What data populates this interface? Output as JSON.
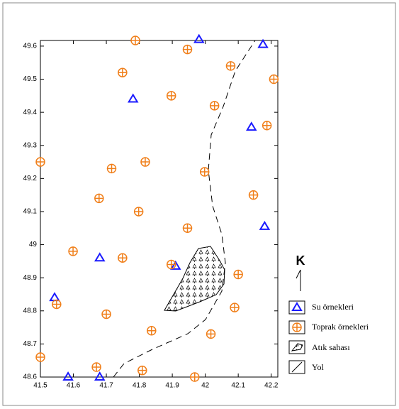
{
  "chart_data": {
    "type": "scatter",
    "xlim": [
      41.5,
      42.22
    ],
    "ylim": [
      48.6,
      49.617
    ],
    "xticks": [
      41.5,
      41.6,
      41.7,
      41.8,
      41.9,
      42,
      42.1,
      42.2
    ],
    "yticks": [
      48.6,
      48.7,
      48.8,
      48.9,
      49,
      49.1,
      49.2,
      49.3,
      49.4,
      49.5,
      49.6
    ],
    "series": [
      {
        "name": "Su örnekleri",
        "color": "#1a1aff",
        "marker": "triangle",
        "x": [
          41.981,
          42.175,
          41.781,
          42.14,
          42.18,
          41.68,
          41.91,
          41.543,
          41.584,
          41.68
        ],
        "values": [
          49.62,
          49.605,
          49.44,
          49.355,
          49.055,
          48.96,
          48.935,
          48.84,
          48.6,
          48.6
        ]
      },
      {
        "name": "Toprak örnekleri",
        "color": "#f07f1a",
        "marker": "circle-plus",
        "x": [
          41.788,
          41.946,
          41.749,
          42.077,
          42.208,
          41.897,
          42.028,
          42.187,
          41.5,
          41.716,
          41.818,
          41.998,
          41.678,
          42.146,
          41.798,
          41.946,
          41.599,
          41.749,
          41.897,
          42.1,
          41.7,
          42.089,
          41.837,
          42.017,
          41.549,
          41.5,
          41.67,
          41.809,
          41.968
        ],
        "values": [
          49.617,
          49.59,
          49.52,
          49.54,
          49.5,
          49.45,
          49.42,
          49.36,
          49.25,
          49.23,
          49.25,
          49.22,
          49.14,
          49.15,
          49.1,
          49.05,
          48.98,
          48.96,
          48.94,
          48.91,
          48.79,
          48.81,
          48.74,
          48.73,
          48.82,
          48.66,
          48.63,
          48.62,
          48.6
        ]
      }
    ],
    "north_label": "K",
    "extra_legend": [
      "Atık sahası",
      "Yol"
    ]
  }
}
